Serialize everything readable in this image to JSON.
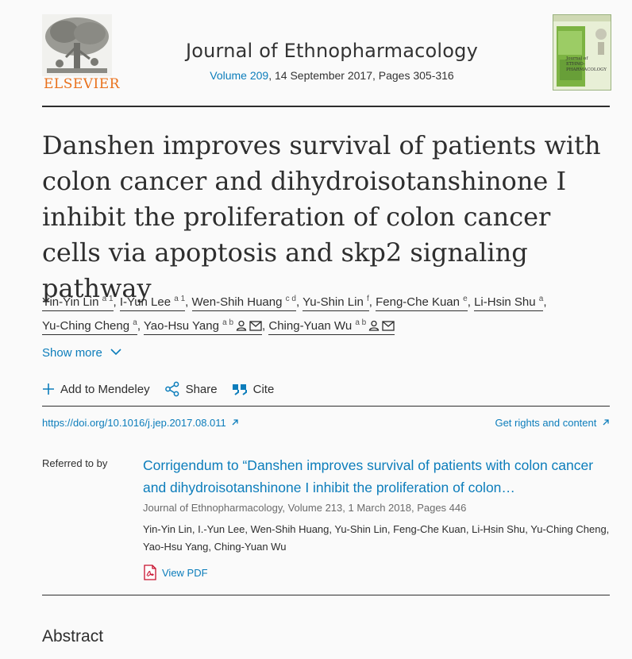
{
  "publisher": {
    "name": "ELSEVIER"
  },
  "journal": {
    "name": "Journal of Ethnopharmacology",
    "volume_link": "Volume 209",
    "issue_rest": ", 14 September 2017, Pages 305-316",
    "cover_text": "Journal of ETHNO-PHARMACOLOGY"
  },
  "article": {
    "title": "Danshen improves survival of patients with colon cancer and dihydroisotanshinone I inhibit the proliferation of colon cancer cells via apoptosis and skp2 signaling pathway",
    "authors": [
      {
        "name": "Yin-Yin Lin",
        "aff": "a 1"
      },
      {
        "name": "I-Yun Lee",
        "aff": "a 1"
      },
      {
        "name": "Wen-Shih Huang",
        "aff": "c d"
      },
      {
        "name": "Yu-Shin Lin",
        "aff": "f"
      },
      {
        "name": "Feng-Che Kuan",
        "aff": "e"
      },
      {
        "name": "Li-Hsin Shu",
        "aff": "a"
      },
      {
        "name": "Yu-Ching Cheng",
        "aff": "a"
      },
      {
        "name": "Yao-Hsu Yang",
        "aff": "a b"
      },
      {
        "name": "Ching-Yuan Wu",
        "aff": "a b"
      }
    ],
    "show_more": "Show more",
    "doi": "https://doi.org/10.1016/j.jep.2017.08.011",
    "rights": "Get rights and content"
  },
  "toolbar": {
    "mendeley": "Add to Mendeley",
    "share": "Share",
    "cite": "Cite"
  },
  "referred": {
    "label": "Referred to by",
    "title": "Corrigendum to “Danshen improves survival of patients with colon cancer and dihydroisotanshinone I inhibit the proliferation of colon…",
    "source": "Journal of Ethnopharmacology, Volume 213, 1 March 2018, Pages 446",
    "authors": "Yin-Yin Lin, I.-Yun Lee, Wen-Shih Huang, Yu-Shin Lin, Feng-Che Kuan, Li-Hsin Shu, Yu-Ching Cheng, Yao-Hsu Yang, Ching-Yuan Wu",
    "view_pdf": "View PDF"
  },
  "sections": {
    "abstract": "Abstract"
  },
  "colors": {
    "link": "#0c7dbb",
    "publisher_orange": "#e9711c",
    "text": "#2e2e2e"
  },
  "icons": [
    "elsevier-tree-logo",
    "journal-cover",
    "person-icon",
    "envelope-icon",
    "chevron-down-icon",
    "plus-icon",
    "share-icon",
    "quote-icon",
    "external-arrow-icon",
    "pdf-icon"
  ]
}
